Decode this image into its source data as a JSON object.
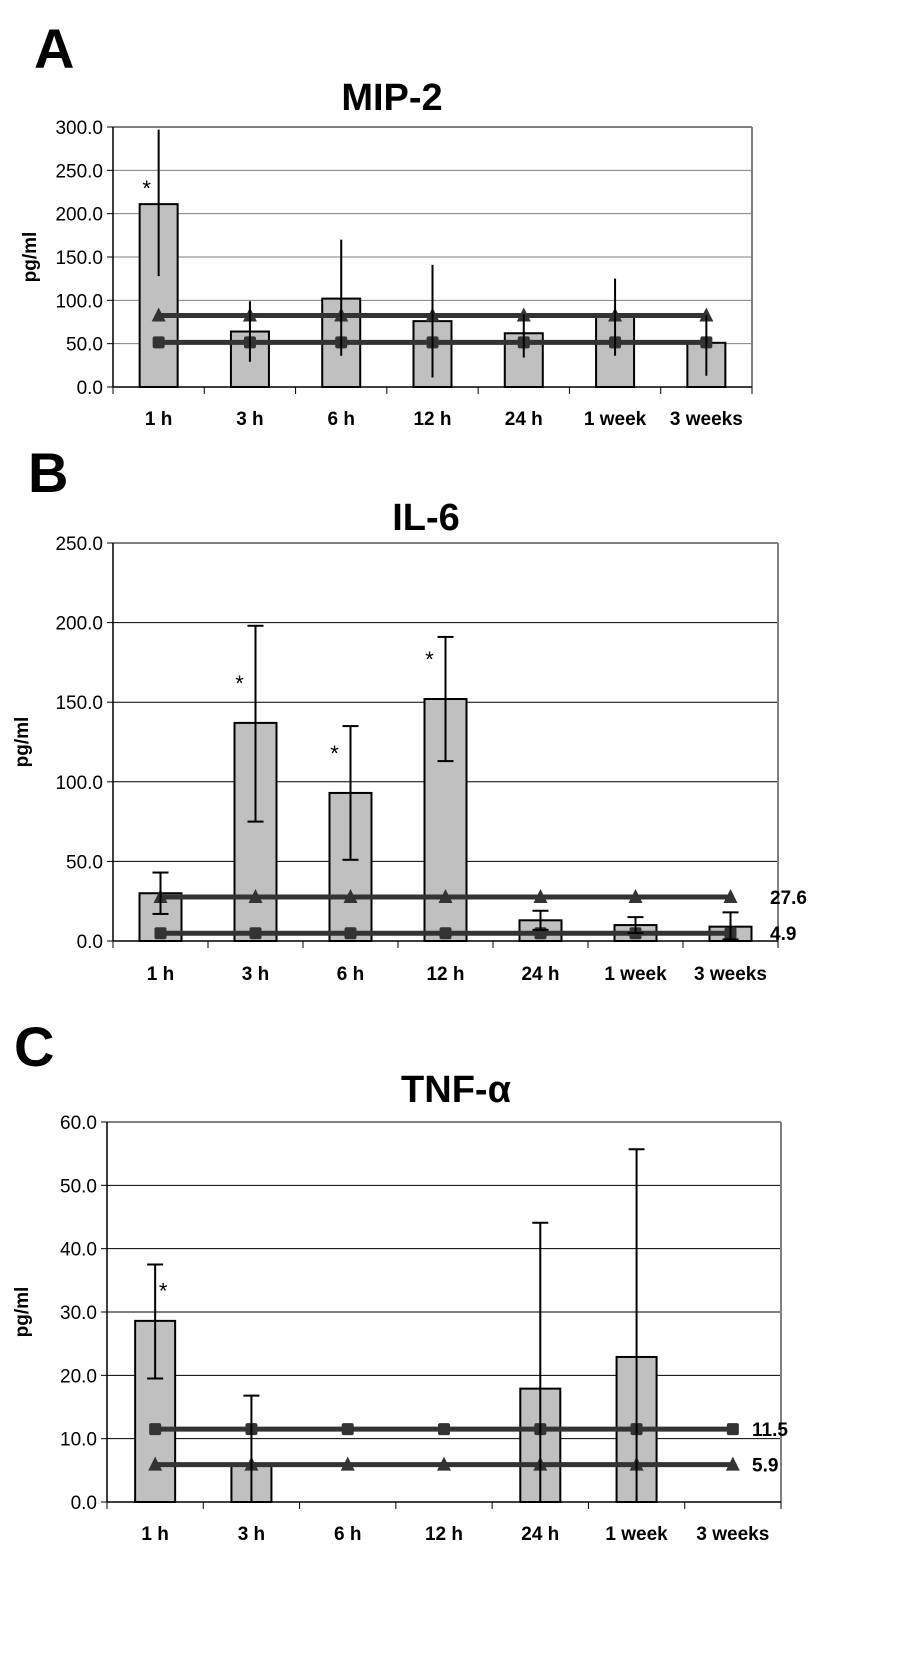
{
  "colors": {
    "bar_fill": "#c0c0c0",
    "bar_stroke": "#000000",
    "reference_line": "#333333",
    "gridline": "#000000",
    "plot_border": "#808080"
  },
  "chart_data": [
    {
      "panel": "A",
      "type": "bar",
      "title": "MIP-2",
      "xlabel": "",
      "ylabel": "pg/ml",
      "ylim": [
        0,
        300
      ],
      "yticks": [
        "0.0",
        "50.0",
        "100.0",
        "150.0",
        "200.0",
        "250.0",
        "300.0"
      ],
      "ytick_values": [
        0,
        50,
        100,
        150,
        200,
        250,
        300
      ],
      "grid": true,
      "categories": [
        "1 h",
        "3 h",
        "6 h",
        "12 h",
        "24 h",
        "1 week",
        "3 weeks"
      ],
      "values": [
        211,
        64,
        102,
        76,
        62,
        83,
        51
      ],
      "error_low": [
        128,
        29,
        36,
        11,
        34,
        36,
        13
      ],
      "error_high": [
        297,
        99,
        170,
        141,
        84,
        125,
        83
      ],
      "error_caps": false,
      "significant": [
        true,
        false,
        false,
        false,
        false,
        false,
        false
      ],
      "significance_marker": "*",
      "reference_lines": [
        {
          "name": "upper-reference",
          "marker": "triangle",
          "value": 82.5,
          "label": ""
        },
        {
          "name": "lower-reference",
          "marker": "square",
          "value": 51.5,
          "label": ""
        }
      ]
    },
    {
      "panel": "B",
      "type": "bar",
      "title": "IL-6",
      "xlabel": "",
      "ylabel": "pg/ml",
      "ylim": [
        0,
        250
      ],
      "yticks": [
        "0.0",
        "50.0",
        "100.0",
        "150.0",
        "200.0",
        "250.0"
      ],
      "ytick_values": [
        0,
        50,
        100,
        150,
        200,
        250
      ],
      "grid": true,
      "categories": [
        "1 h",
        "3 h",
        "6 h",
        "12 h",
        "24 h",
        "1 week",
        "3 weeks"
      ],
      "values": [
        30,
        137,
        93,
        152,
        13,
        10,
        9
      ],
      "error_low": [
        17,
        75,
        51,
        113,
        7,
        5,
        1
      ],
      "error_high": [
        43,
        198,
        135,
        191,
        19,
        15,
        18
      ],
      "error_caps": true,
      "significant": [
        false,
        true,
        true,
        true,
        false,
        false,
        false
      ],
      "significance_marker": "*",
      "reference_lines": [
        {
          "name": "upper-reference",
          "marker": "triangle",
          "value": 27.6,
          "label": "27.6"
        },
        {
          "name": "lower-reference",
          "marker": "square",
          "value": 4.9,
          "label": "4.9"
        }
      ]
    },
    {
      "panel": "C",
      "type": "bar",
      "title": "TNF-α",
      "xlabel": "",
      "ylabel": "pg/ml",
      "ylim": [
        0,
        60
      ],
      "yticks": [
        "0.0",
        "10.0",
        "20.0",
        "30.0",
        "40.0",
        "50.0",
        "60.0"
      ],
      "ytick_values": [
        0,
        10,
        20,
        30,
        40,
        50,
        60
      ],
      "grid": true,
      "categories": [
        "1 h",
        "3 h",
        "6 h",
        "12 h",
        "24 h",
        "1 week",
        "3 weeks"
      ],
      "values": [
        28.6,
        6.0,
        0,
        0,
        17.9,
        22.9,
        0
      ],
      "error_low": [
        19.5,
        0,
        0,
        0,
        0,
        0,
        0
      ],
      "error_high": [
        37.5,
        16.8,
        0,
        0,
        44.1,
        55.7,
        0
      ],
      "error_caps": true,
      "significant": [
        true,
        false,
        false,
        false,
        false,
        false,
        false
      ],
      "significance_marker": "*",
      "reference_lines": [
        {
          "name": "upper-reference",
          "marker": "square",
          "value": 11.5,
          "label": "11.5"
        },
        {
          "name": "lower-reference",
          "marker": "triangle",
          "value": 5.9,
          "label": "5.9"
        }
      ]
    }
  ]
}
